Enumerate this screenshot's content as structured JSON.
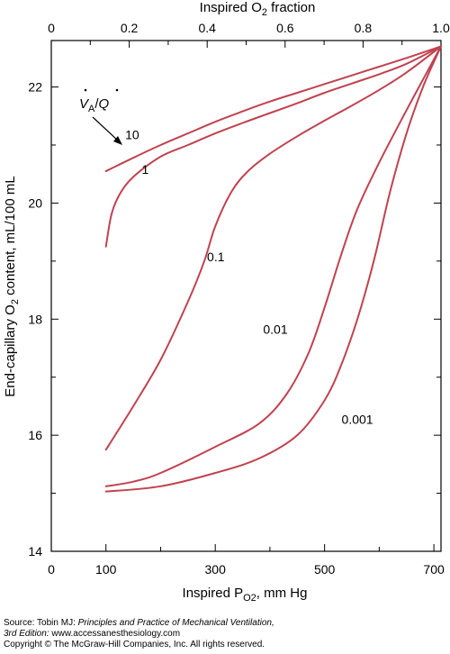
{
  "chart_data": {
    "type": "line",
    "top_axis": {
      "title_main": "Inspired O",
      "title_sub": "2",
      "title_tail": " fraction",
      "ticks": [
        "0",
        "0.2",
        "0.4",
        "0.6",
        "0.8",
        "1.0"
      ],
      "tick_values": [
        0,
        0.2,
        0.4,
        0.6,
        0.8,
        1.0
      ],
      "range": [
        0,
        1.0
      ]
    },
    "x_axis": {
      "title_main": "Inspired P",
      "title_sub": "O2",
      "title_tail": ", mm Hg",
      "ticks": [
        "0",
        "100",
        "300",
        "500",
        "700"
      ],
      "tick_values": [
        0,
        100,
        300,
        500,
        700
      ],
      "range": [
        0,
        713
      ]
    },
    "y_axis": {
      "title_main": "End-capillary O",
      "title_sub": "2",
      "title_tail": " content, mL/100 mL",
      "ticks": [
        "14",
        "16",
        "18",
        "20",
        "22"
      ],
      "tick_values": [
        14,
        16,
        18,
        20,
        22
      ],
      "range": [
        14,
        22.8
      ]
    },
    "legend_title": {
      "va": "V",
      "va_sub": "A",
      "slash": "/",
      "q": "Q"
    },
    "series": [
      {
        "name": "10",
        "points": [
          [
            100,
            20.55
          ],
          [
            150,
            20.78
          ],
          [
            200,
            21.0
          ],
          [
            250,
            21.2
          ],
          [
            300,
            21.4
          ],
          [
            350,
            21.58
          ],
          [
            400,
            21.75
          ],
          [
            450,
            21.9
          ],
          [
            500,
            22.05
          ],
          [
            550,
            22.2
          ],
          [
            600,
            22.35
          ],
          [
            650,
            22.5
          ],
          [
            713,
            22.7
          ]
        ]
      },
      {
        "name": "1",
        "points": [
          [
            100,
            19.25
          ],
          [
            110,
            19.8
          ],
          [
            125,
            20.15
          ],
          [
            150,
            20.45
          ],
          [
            200,
            20.8
          ],
          [
            250,
            21.0
          ],
          [
            300,
            21.2
          ],
          [
            350,
            21.38
          ],
          [
            400,
            21.55
          ],
          [
            450,
            21.72
          ],
          [
            500,
            21.9
          ],
          [
            550,
            22.06
          ],
          [
            600,
            22.22
          ],
          [
            650,
            22.4
          ],
          [
            713,
            22.7
          ]
        ]
      },
      {
        "name": "0.1",
        "points": [
          [
            100,
            15.75
          ],
          [
            150,
            16.5
          ],
          [
            200,
            17.3
          ],
          [
            250,
            18.3
          ],
          [
            280,
            19.0
          ],
          [
            300,
            19.6
          ],
          [
            330,
            20.2
          ],
          [
            360,
            20.55
          ],
          [
            400,
            20.85
          ],
          [
            450,
            21.15
          ],
          [
            500,
            21.42
          ],
          [
            550,
            21.68
          ],
          [
            600,
            21.95
          ],
          [
            650,
            22.25
          ],
          [
            713,
            22.7
          ]
        ]
      },
      {
        "name": "0.01",
        "points": [
          [
            100,
            15.12
          ],
          [
            150,
            15.2
          ],
          [
            200,
            15.35
          ],
          [
            300,
            15.8
          ],
          [
            380,
            16.2
          ],
          [
            430,
            16.7
          ],
          [
            470,
            17.4
          ],
          [
            500,
            18.2
          ],
          [
            530,
            19.1
          ],
          [
            560,
            19.9
          ],
          [
            600,
            20.7
          ],
          [
            650,
            21.6
          ],
          [
            690,
            22.3
          ],
          [
            713,
            22.7
          ]
        ]
      },
      {
        "name": "0.001",
        "points": [
          [
            100,
            15.03
          ],
          [
            200,
            15.12
          ],
          [
            300,
            15.35
          ],
          [
            380,
            15.6
          ],
          [
            450,
            16.0
          ],
          [
            500,
            16.6
          ],
          [
            530,
            17.2
          ],
          [
            560,
            18.0
          ],
          [
            590,
            19.0
          ],
          [
            620,
            20.2
          ],
          [
            650,
            21.2
          ],
          [
            680,
            22.0
          ],
          [
            713,
            22.7
          ]
        ]
      }
    ],
    "line_color": "#c0424f",
    "label_positions": {
      "10": [
        148,
        21.1
      ],
      "1": [
        172,
        20.5
      ],
      "0.1": [
        301,
        19.0
      ],
      "0.01": [
        410,
        17.75
      ],
      "0.001": [
        560,
        16.2
      ]
    },
    "grid": false
  },
  "footer": {
    "source_prefix": "Source: Tobin MJ: ",
    "source_title": "Principles and Practice of Mechanical Ventilation,",
    "edition": "3rd Edition:",
    "edition_url": " www.accessanesthesiology.com",
    "copyright": "Copyright © The McGraw-Hill Companies, Inc. All rights reserved."
  }
}
